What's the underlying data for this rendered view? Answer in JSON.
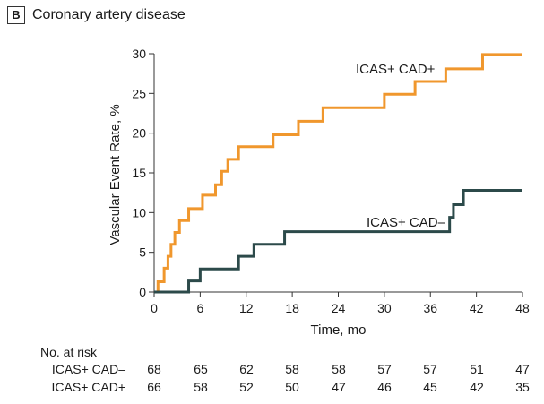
{
  "panel": {
    "letter": "B",
    "title": "Coronary artery disease"
  },
  "chart_data": {
    "type": "line",
    "step": true,
    "xlabel": "Time, mo",
    "ylabel": "Vascular Event Rate, %",
    "xlim": [
      0,
      48
    ],
    "ylim": [
      0,
      30
    ],
    "xticks": [
      0,
      6,
      12,
      18,
      24,
      30,
      36,
      42,
      48
    ],
    "yticks": [
      0,
      5,
      10,
      15,
      20,
      25,
      30
    ],
    "grid": false,
    "series": [
      {
        "name": "ICAS+ CAD+",
        "color": "#F0972D",
        "x": [
          0,
          0.5,
          1.3,
          1.8,
          2.2,
          2.7,
          3.3,
          4.5,
          6.3,
          8.0,
          8.8,
          9.6,
          11.0,
          15.5,
          18.8,
          22.0,
          30.0,
          34.0,
          38.0,
          42.8,
          48.0
        ],
        "y": [
          0,
          1.3,
          3.0,
          4.5,
          6.0,
          7.5,
          9.0,
          10.5,
          12.2,
          13.5,
          15.2,
          16.7,
          18.3,
          19.8,
          21.5,
          23.2,
          24.9,
          26.5,
          28.1,
          29.9,
          29.9
        ]
      },
      {
        "name": "ICAS+ CAD−",
        "color": "#2C4A4A",
        "x": [
          0,
          4.5,
          6.0,
          11.0,
          13.0,
          17.0,
          38.5,
          39.0,
          40.3,
          48.0
        ],
        "y": [
          0,
          1.4,
          2.9,
          4.5,
          6.0,
          7.6,
          9.4,
          11.0,
          12.8,
          12.8
        ]
      }
    ],
    "series_labels": [
      "ICAS+ CAD+",
      "ICAS+ CAD–"
    ],
    "at_risk": {
      "heading": "No. at risk",
      "rows": [
        {
          "label": "ICAS+ CAD–",
          "values": [
            68,
            65,
            62,
            58,
            58,
            57,
            57,
            51,
            47
          ]
        },
        {
          "label": "ICAS+ CAD+",
          "values": [
            66,
            58,
            52,
            50,
            47,
            46,
            45,
            42,
            35
          ]
        }
      ]
    }
  }
}
